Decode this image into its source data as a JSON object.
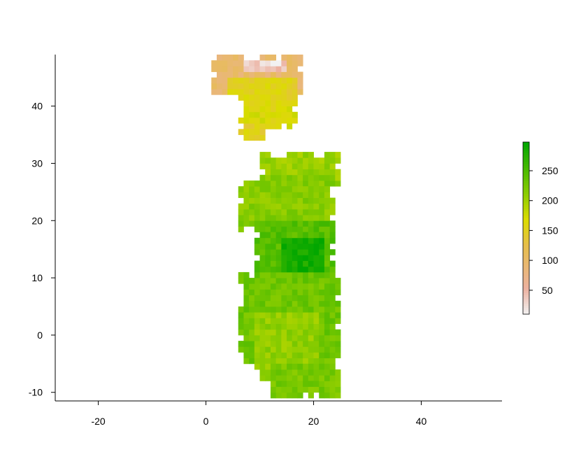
{
  "chart_data": {
    "type": "heatmap",
    "title": "",
    "xlabel": "",
    "ylabel": "",
    "xlim": [
      -28,
      55
    ],
    "ylim": [
      -11.5,
      49
    ],
    "x_ticks": [
      -20,
      0,
      20,
      40
    ],
    "y_ticks": [
      -10,
      0,
      10,
      20,
      30,
      40
    ],
    "x_tick_labels": [
      "-20",
      "0",
      "20",
      "40"
    ],
    "y_tick_labels": [
      "-10",
      "0",
      "10",
      "20",
      "30",
      "40"
    ],
    "legend": {
      "position": "right",
      "min": 10,
      "max": 298,
      "ticks": [
        50,
        100,
        150,
        200,
        250
      ],
      "tick_labels": [
        "50",
        "100",
        "150",
        "200",
        "250"
      ],
      "colormap": "terrain (reversed)"
    },
    "grid": false,
    "cell_size_deg": 1,
    "regions": [
      {
        "xmin": 1,
        "xmax": 18,
        "ymin": 42,
        "ymax": 49,
        "value": 95
      },
      {
        "xmin": 7,
        "xmax": 15,
        "ymin": 46,
        "ymax": 48,
        "value": 40
      },
      {
        "xmin": 10,
        "xmax": 14,
        "ymin": 47,
        "ymax": 48,
        "value": 18
      },
      {
        "xmin": 4,
        "xmax": 17,
        "ymin": 41,
        "ymax": 45,
        "value": 155
      },
      {
        "xmin": 6,
        "xmax": 17,
        "ymin": 36,
        "ymax": 41,
        "value": 165
      },
      {
        "xmin": 6,
        "xmax": 11,
        "ymin": 34,
        "ymax": 37,
        "value": 150
      },
      {
        "xmin": 10,
        "xmax": 25,
        "ymin": 26,
        "ymax": 32,
        "value": 205
      },
      {
        "xmin": 6,
        "xmax": 24,
        "ymin": 18,
        "ymax": 28,
        "value": 215
      },
      {
        "xmin": 9,
        "xmax": 24,
        "ymin": 9,
        "ymax": 20,
        "value": 245
      },
      {
        "xmin": 14,
        "xmax": 22,
        "ymin": 10,
        "ymax": 17,
        "value": 285
      },
      {
        "xmin": 6,
        "xmax": 25,
        "ymin": -5,
        "ymax": 11,
        "value": 230
      },
      {
        "xmin": 9,
        "xmax": 21,
        "ymin": -8,
        "ymax": 4,
        "value": 210
      },
      {
        "xmin": 12,
        "xmax": 25,
        "ymin": -11,
        "ymax": -5,
        "value": 225
      }
    ]
  }
}
